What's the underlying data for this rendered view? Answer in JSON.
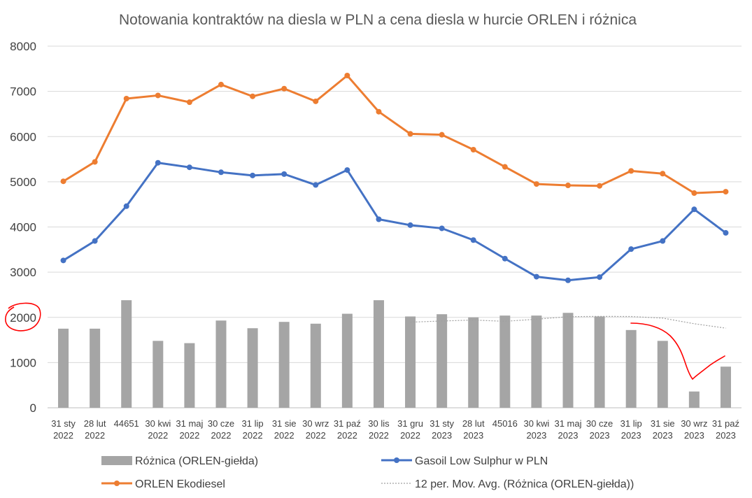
{
  "chart_data": {
    "type": "bar",
    "title": "Notowania kontraktów na diesla w PLN a cena diesla w hurcie ORLEN i różnica",
    "categories": [
      [
        "31 sty",
        "2022"
      ],
      [
        "28 lut",
        "2022"
      ],
      [
        "44651",
        ""
      ],
      [
        "30 kwi",
        "2022"
      ],
      [
        "31 maj",
        "2022"
      ],
      [
        "30 cze",
        "2022"
      ],
      [
        "31 lip",
        "2022"
      ],
      [
        "31 sie",
        "2022"
      ],
      [
        "30 wrz",
        "2022"
      ],
      [
        "31 paź",
        "2022"
      ],
      [
        "30 lis",
        "2022"
      ],
      [
        "31 gru",
        "2022"
      ],
      [
        "31 sty",
        "2023"
      ],
      [
        "28 lut",
        "2023"
      ],
      [
        "45016",
        ""
      ],
      [
        "30 kwi",
        "2023"
      ],
      [
        "31 maj",
        "2023"
      ],
      [
        "30 cze",
        "2023"
      ],
      [
        "31 lip",
        "2023"
      ],
      [
        "31 sie",
        "2023"
      ],
      [
        "30 wrz",
        "2023"
      ],
      [
        "31 paź",
        "2023"
      ]
    ],
    "ylim": [
      0,
      8000
    ],
    "yticks": [
      "0",
      "1000",
      "2000",
      "3000",
      "4000",
      "5000",
      "6000",
      "7000",
      "8000"
    ],
    "grid": true,
    "legend_position": "bottom",
    "series": [
      {
        "name": "Różnica (ORLEN-giełda)",
        "type": "bar",
        "color": "#a5a5a5",
        "values": [
          1750,
          1750,
          2380,
          1480,
          1430,
          1930,
          1760,
          1900,
          1860,
          2080,
          2380,
          2020,
          2070,
          2000,
          2040,
          2040,
          2100,
          2020,
          1720,
          1480,
          360,
          910
        ]
      },
      {
        "name": "Gasoil Low Sulphur w PLN",
        "type": "line",
        "color": "#4472c4",
        "values": [
          3260,
          3690,
          4460,
          5420,
          5320,
          5210,
          5140,
          5170,
          4930,
          5260,
          4170,
          4040,
          3970,
          3710,
          3300,
          2900,
          2820,
          2890,
          3510,
          3690,
          4390,
          3870
        ]
      },
      {
        "name": "ORLEN Ekodiesel",
        "type": "line",
        "color": "#ed7d31",
        "values": [
          5010,
          5440,
          6840,
          6910,
          6760,
          7150,
          6890,
          7060,
          6780,
          7350,
          6550,
          6060,
          6040,
          5710,
          5330,
          4950,
          4920,
          4910,
          5240,
          5180,
          4750,
          4780
        ]
      },
      {
        "name": "12 per. Mov. Avg. (Różnica (ORLEN-giełda))",
        "type": "moving-average",
        "color": "#a5a5a5",
        "period": 12
      }
    ],
    "annotations": {
      "color": "#ff0000",
      "circle_around_tick": "2000",
      "freehand_decline_curve": true
    }
  }
}
